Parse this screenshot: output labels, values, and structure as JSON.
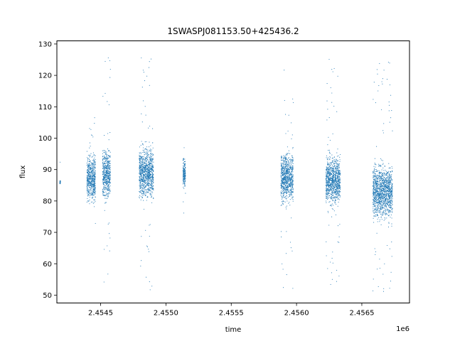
{
  "chart_data": {
    "type": "scatter",
    "title": "1SWASPJ081153.50+425436.2",
    "xlabel": "time",
    "ylabel": "flux",
    "x_offset_label": "1e6",
    "xlim": [
      2454165,
      2456865
    ],
    "ylim": [
      47.5,
      131
    ],
    "x_ticks": [
      2454500,
      2455000,
      2455500,
      2456000,
      2456500
    ],
    "x_tick_labels": [
      "2.4545",
      "2.4550",
      "2.4555",
      "2.4560",
      "2.4565"
    ],
    "y_ticks": [
      50,
      60,
      70,
      80,
      90,
      100,
      110,
      120,
      130
    ],
    "y_tick_labels": [
      "50",
      "60",
      "70",
      "80",
      "90",
      "100",
      "110",
      "120",
      "130"
    ],
    "grid": false,
    "legend": "none",
    "point_color": "#1f77b4",
    "clusters": [
      {
        "x_range": [
          2454188,
          2454192
        ],
        "core": [
          85,
          87
        ],
        "tail": [
          81,
          109
        ]
      },
      {
        "x_range": [
          2454395,
          2454460
        ],
        "core": [
          77,
          98
        ],
        "tail": [
          71,
          107
        ]
      },
      {
        "x_range": [
          2454515,
          2454575
        ],
        "core": [
          76,
          101
        ],
        "tail": [
          52,
          127
        ]
      },
      {
        "x_range": [
          2454795,
          2454905
        ],
        "core": [
          77,
          101
        ],
        "tail": [
          51,
          126
        ]
      },
      {
        "x_range": [
          2455130,
          2455150
        ],
        "core": [
          82,
          96
        ],
        "tail": [
          75,
          97
        ]
      },
      {
        "x_range": [
          2455880,
          2455975
        ],
        "core": [
          76,
          99
        ],
        "tail": [
          50,
          124
        ]
      },
      {
        "x_range": [
          2456225,
          2456335
        ],
        "core": [
          75,
          98
        ],
        "tail": [
          52,
          127
        ]
      },
      {
        "x_range": [
          2456585,
          2456735
        ],
        "core": [
          71,
          95
        ],
        "tail": [
          51,
          125
        ]
      }
    ]
  }
}
